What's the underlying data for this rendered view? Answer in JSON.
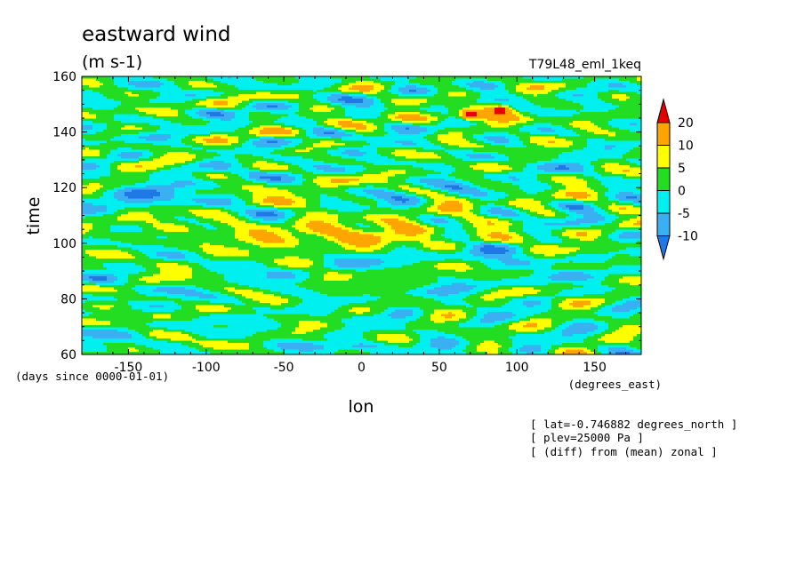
{
  "chart_data": {
    "type": "heatmap",
    "title": "eastward wind",
    "units": "(m s-1)",
    "experiment": "T79L48_eml_1keq",
    "xlabel": "lon",
    "xunits": "(degrees_east)",
    "ylabel": "time",
    "yunits": "(days since 0000-01-01)",
    "xlim": [
      -180,
      180
    ],
    "ylim": [
      60,
      160
    ],
    "xticks": [
      -150,
      -100,
      -50,
      0,
      50,
      100,
      150
    ],
    "xtick_labels": [
      "-150",
      "-100",
      "-50",
      "0",
      "50",
      "100",
      "150"
    ],
    "yticks": [
      60,
      80,
      100,
      120,
      140,
      160
    ],
    "ytick_labels": [
      "60",
      "80",
      "100",
      "120",
      "140",
      "160"
    ],
    "colorbar": {
      "levels": [
        -10,
        -5,
        0,
        5,
        10,
        20
      ],
      "level_labels": [
        "-10",
        "-5",
        "0",
        "5",
        "10",
        "20"
      ],
      "colors": [
        "#1f78e6",
        "#3ab0f2",
        "#00f0f0",
        "#22dd22",
        "#ffff00",
        "#ffa500",
        "#e60000"
      ]
    },
    "notes": [
      "[ lat=-0.746882 degrees_north ]",
      "[ plev=25000 Pa ]",
      "[ (diff) from (mean) zonal ]"
    ],
    "features": [
      {
        "type": "band",
        "lon": [
          -140,
          100
        ],
        "time": [
          97,
          110
        ],
        "value": 10
      },
      {
        "type": "band",
        "lon": [
          -50,
          -10
        ],
        "time": [
          112,
          118
        ],
        "value": 10
      },
      {
        "type": "band",
        "lon": [
          40,
          120
        ],
        "time": [
          142,
          148
        ],
        "value": 12
      },
      {
        "type": "cell",
        "lon": 90,
        "time": 148,
        "value": 20
      },
      {
        "type": "cell",
        "lon": 70,
        "time": 146,
        "value": 20
      },
      {
        "type": "band",
        "lon": [
          50,
          120
        ],
        "time": [
          91,
          98
        ],
        "value": -10
      },
      {
        "type": "band",
        "lon": [
          -170,
          -90
        ],
        "time": [
          112,
          120
        ],
        "value": -10
      },
      {
        "type": "band",
        "lon": [
          -40,
          20
        ],
        "time": [
          61,
          65
        ],
        "value": -10
      }
    ]
  }
}
